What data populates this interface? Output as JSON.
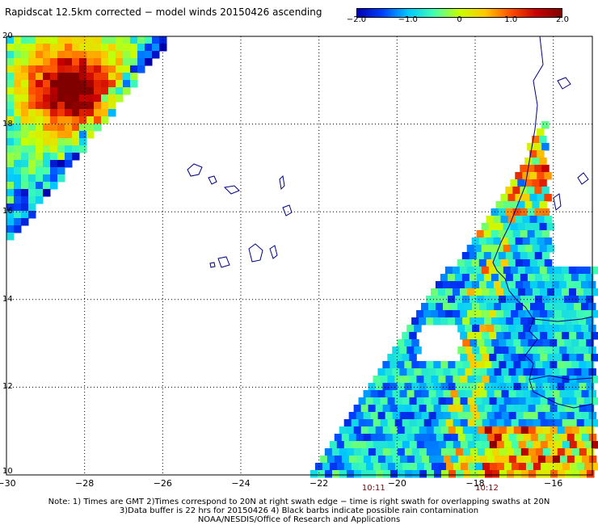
{
  "title": "Rapidscat 12.5km corrected − model winds 20150426 ascending",
  "colorbar": {
    "ticks": [
      {
        "value": -2.0,
        "label": "−2.0"
      },
      {
        "value": -1.0,
        "label": "−1.0"
      },
      {
        "value": 0,
        "label": "0"
      },
      {
        "value": 1.0,
        "label": "1.0"
      },
      {
        "value": 2.0,
        "label": "2.0"
      }
    ],
    "min": -2.0,
    "max": 2.0,
    "colors": [
      "#0000b0",
      "#0040ff",
      "#00c8ff",
      "#40ffb0",
      "#c8ff00",
      "#ffc800",
      "#ff5000",
      "#c80000",
      "#800000"
    ]
  },
  "map": {
    "lon_range": [
      -30,
      -15
    ],
    "lat_range": [
      10,
      20
    ],
    "lon_ticks": [
      {
        "value": -30,
        "label": "−30"
      },
      {
        "value": -28,
        "label": "−28"
      },
      {
        "value": -26,
        "label": "−26"
      },
      {
        "value": -24,
        "label": "−24"
      },
      {
        "value": -22,
        "label": "−22"
      },
      {
        "value": -20,
        "label": "−20"
      },
      {
        "value": -18,
        "label": "−18"
      },
      {
        "value": -16,
        "label": "−16"
      }
    ],
    "lat_ticks": [
      {
        "value": 20,
        "label": "20"
      },
      {
        "value": 18,
        "label": "18"
      },
      {
        "value": 16,
        "label": "16"
      },
      {
        "value": 14,
        "label": "14"
      },
      {
        "value": 12,
        "label": "12"
      },
      {
        "value": 10,
        "label": "10"
      }
    ],
    "grid": true,
    "swath_times": [
      {
        "lon": -20.6,
        "label": "10:11"
      },
      {
        "lon": -17.7,
        "label": "10:12"
      }
    ],
    "coast_color": "#000080",
    "grid_color": "#000000"
  },
  "notes": [
    "Note: 1) Times are GMT 2)Times correspond to 20N at right swath edge − time is right swath for overlapping swaths at 20N",
    "3)Data buffer is 22 hrs for 20150426 4) Black barbs indicate possible rain contamination",
    "NOAA/NESDIS/Office of Research and Applications"
  ]
}
